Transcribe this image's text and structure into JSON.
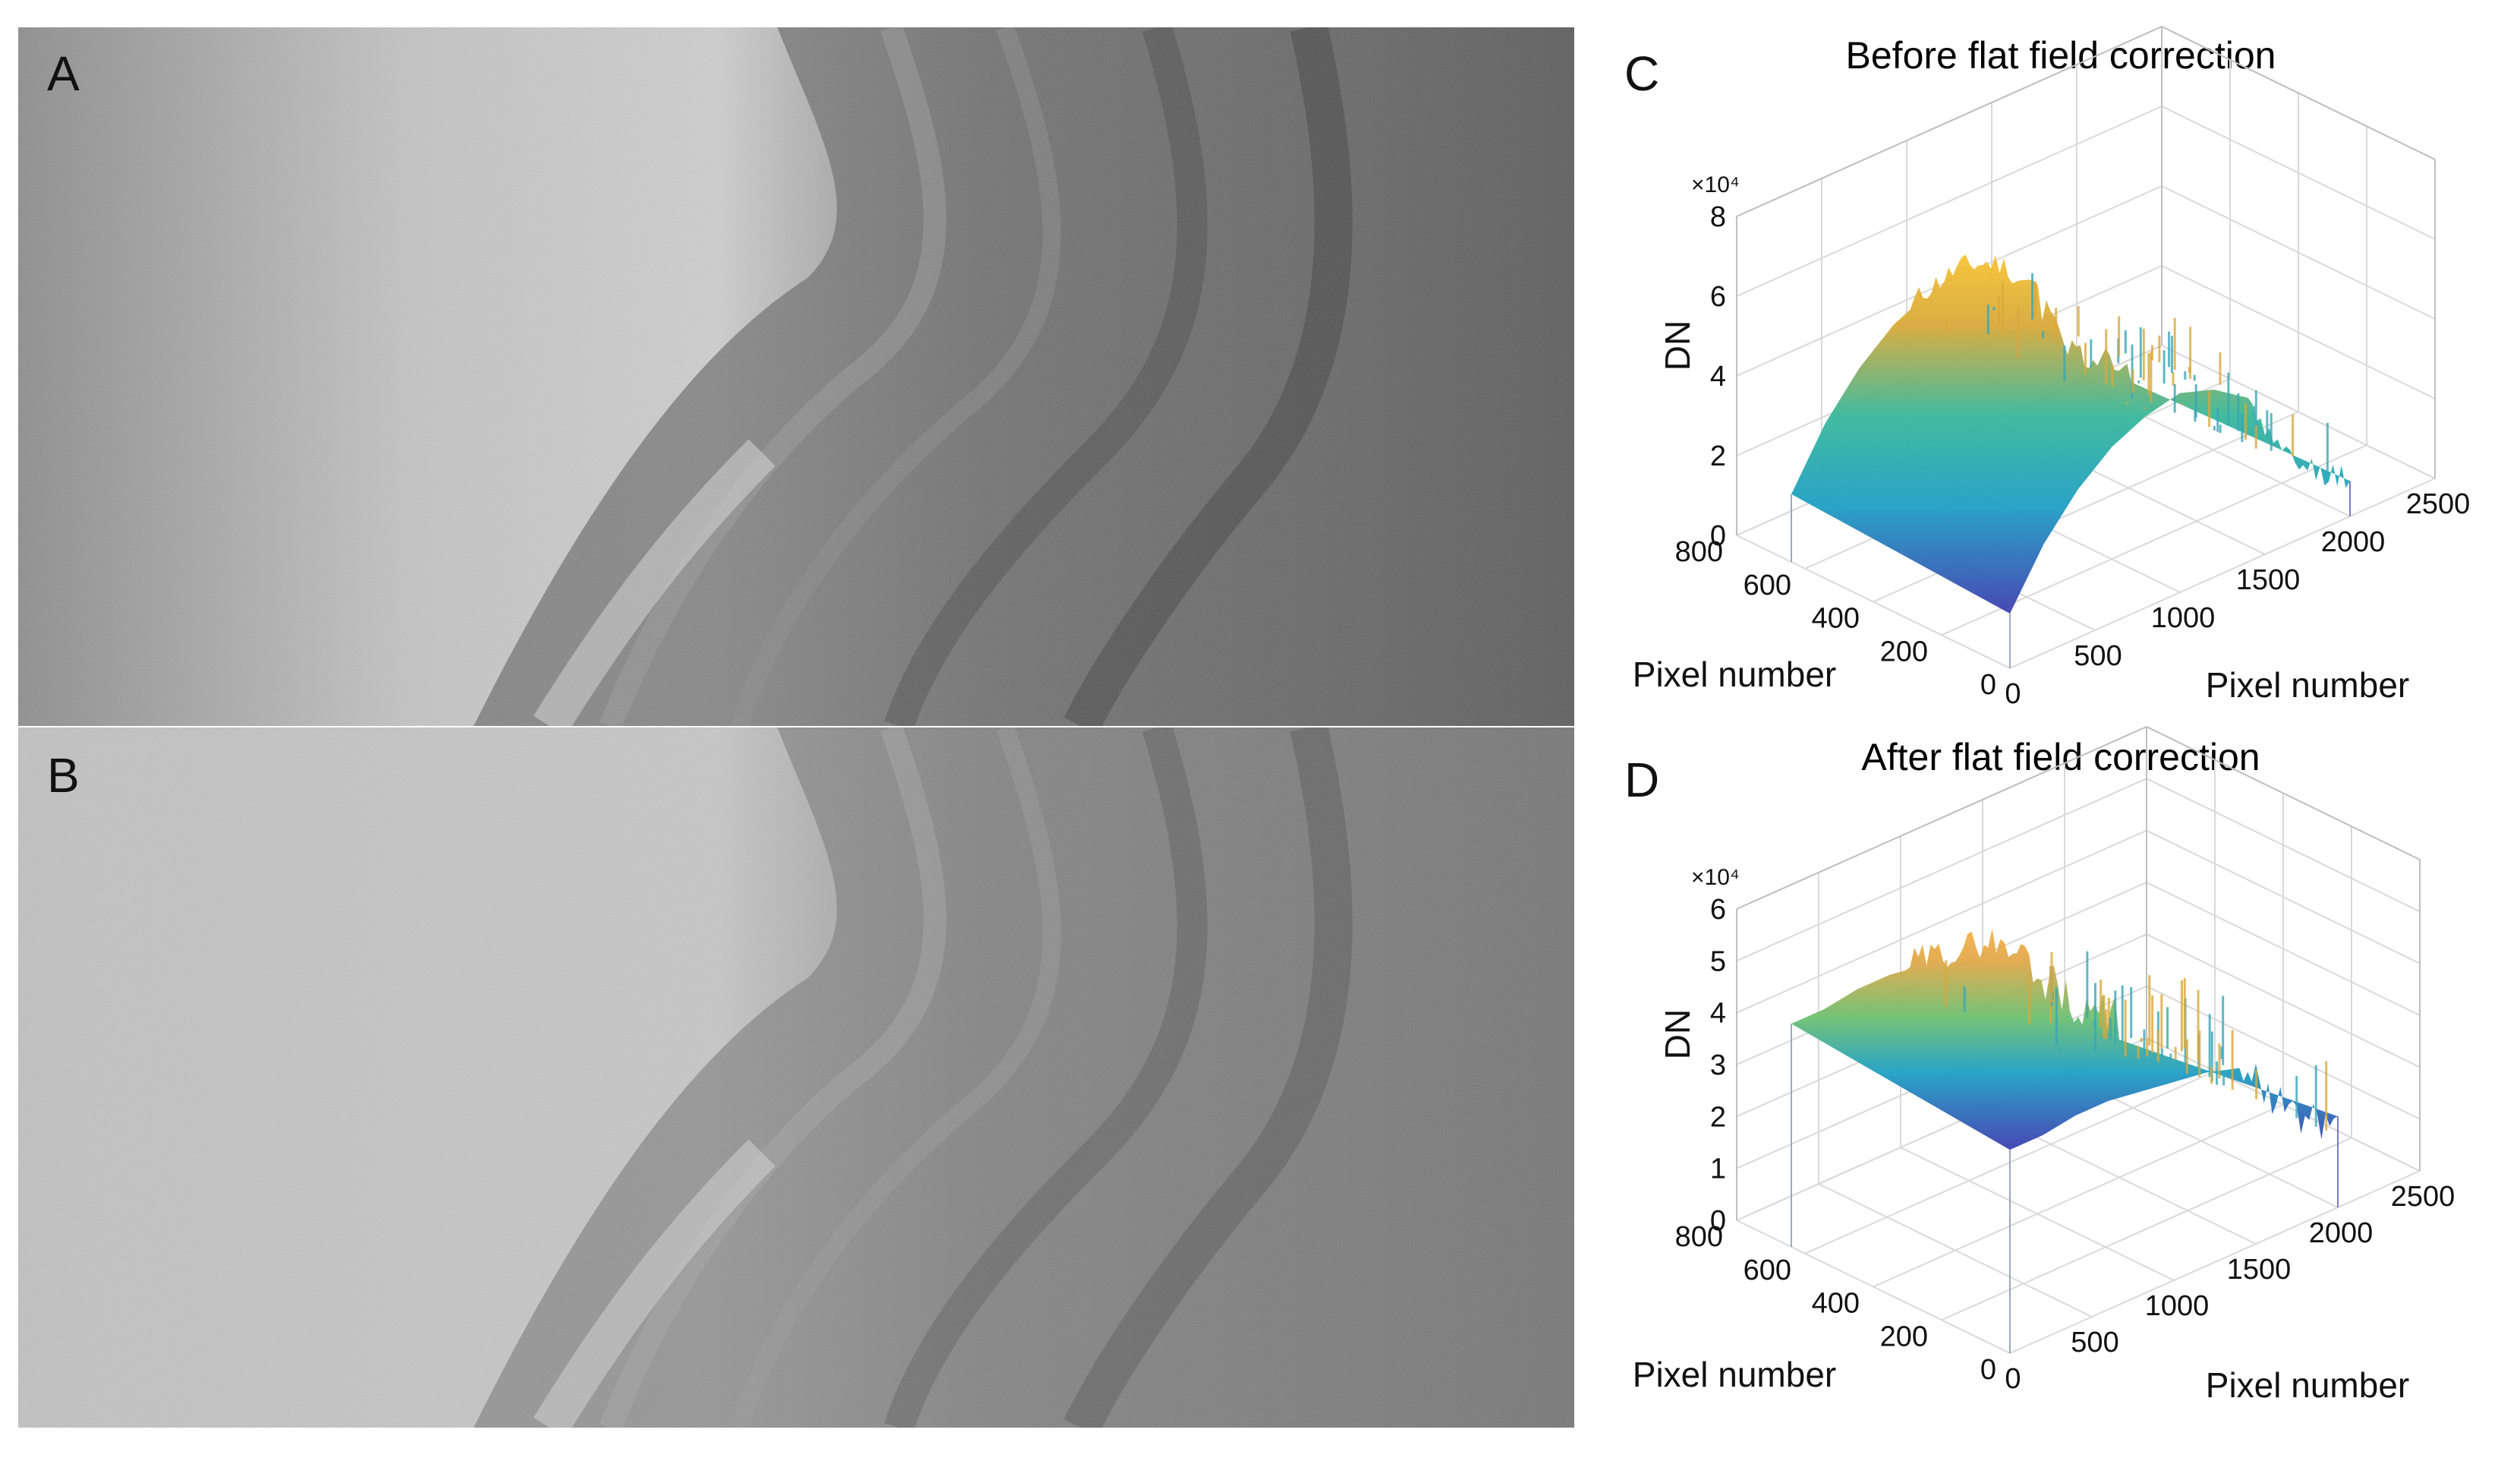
{
  "panels": {
    "a": {
      "label": "A"
    },
    "b": {
      "label": "B"
    },
    "c": {
      "label": "C"
    },
    "d": {
      "label": "D"
    }
  },
  "chart_data": [
    {
      "type": "surface",
      "panel": "C",
      "title": "Before flat field correction",
      "zlabel": "DN",
      "z_multiplier": "×10⁴",
      "xlabel": "Pixel number",
      "ylabel": "Pixel number",
      "x_ticks": [
        "0",
        "500",
        "1000",
        "1500",
        "2000",
        "2500"
      ],
      "y_ticks": [
        "0",
        "200",
        "400",
        "600",
        "800"
      ],
      "z_ticks": [
        "0",
        "2",
        "4",
        "6",
        "8"
      ],
      "xlim": [
        0,
        2500
      ],
      "ylim": [
        0,
        800
      ],
      "zlim": [
        0,
        80000
      ],
      "profile_x": [
        0,
        200,
        400,
        600,
        800,
        1000,
        1200,
        1400,
        1600,
        1800,
        2000
      ],
      "profile_z": [
        14000,
        28000,
        38000,
        45000,
        49000,
        51000,
        48000,
        42000,
        22000,
        14000,
        9000
      ],
      "colormap": "parula",
      "grid": true
    },
    {
      "type": "surface",
      "panel": "D",
      "title": "After flat field correction",
      "zlabel": "DN",
      "z_multiplier": "×10⁴",
      "xlabel": "Pixel number",
      "ylabel": "Pixel number",
      "x_ticks": [
        "0",
        "500",
        "1000",
        "1500",
        "2000",
        "2500"
      ],
      "y_ticks": [
        "0",
        "200",
        "400",
        "600",
        "800"
      ],
      "z_ticks": [
        "0",
        "1",
        "2",
        "3",
        "4",
        "5",
        "6"
      ],
      "xlim": [
        0,
        2500
      ],
      "ylim": [
        0,
        800
      ],
      "zlim": [
        0,
        60000
      ],
      "profile_x": [
        0,
        200,
        400,
        600,
        800,
        1000,
        1200,
        1400,
        1600,
        1800,
        2000
      ],
      "profile_z": [
        40000,
        40000,
        41000,
        41000,
        40000,
        39000,
        38000,
        36000,
        26000,
        19000,
        14000
      ],
      "colormap": "parula",
      "grid": true
    }
  ]
}
